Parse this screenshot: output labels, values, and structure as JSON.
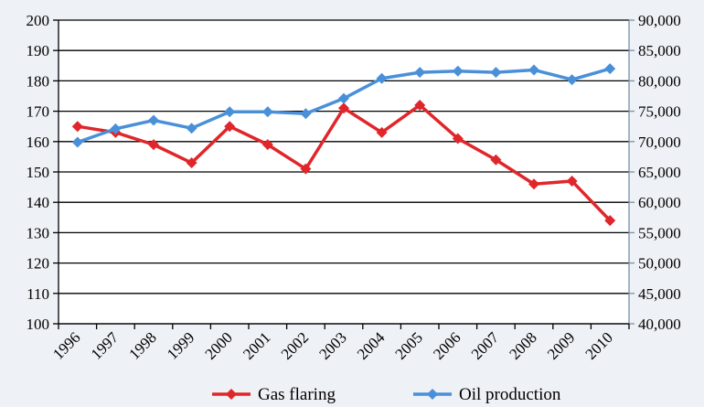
{
  "chart_data": {
    "type": "line",
    "title": "",
    "xlabel": "",
    "ylabel": "",
    "y2label": "",
    "categories": [
      "1996",
      "1997",
      "1998",
      "1999",
      "2000",
      "2001",
      "2002",
      "2003",
      "2004",
      "2005",
      "2006",
      "2007",
      "2008",
      "2009",
      "2010"
    ],
    "left_axis": {
      "min": 100,
      "max": 200,
      "step": 10,
      "ticks": [
        "100",
        "110",
        "120",
        "130",
        "140",
        "150",
        "160",
        "170",
        "180",
        "190",
        "200"
      ]
    },
    "right_axis": {
      "min": 40000,
      "max": 90000,
      "step": 5000,
      "ticks": [
        "40,000",
        "45,000",
        "50,000",
        "55,000",
        "60,000",
        "65,000",
        "70,000",
        "75,000",
        "80,000",
        "85,000",
        "90,000"
      ]
    },
    "grid": true,
    "legend_position": "bottom",
    "series": [
      {
        "name": "Gas flaring",
        "axis": "left",
        "color": "#e0262a",
        "marker": "diamond",
        "values": [
          165,
          163,
          159,
          153,
          165,
          159,
          151,
          171,
          163,
          172,
          161,
          154,
          146,
          147,
          134
        ]
      },
      {
        "name": "Oil production",
        "axis": "right",
        "color": "#4a90d9",
        "marker": "diamond",
        "values": [
          69900,
          72100,
          73500,
          72200,
          74900,
          74900,
          74600,
          77100,
          80400,
          81400,
          81600,
          81400,
          81800,
          80200,
          82000
        ]
      }
    ]
  }
}
